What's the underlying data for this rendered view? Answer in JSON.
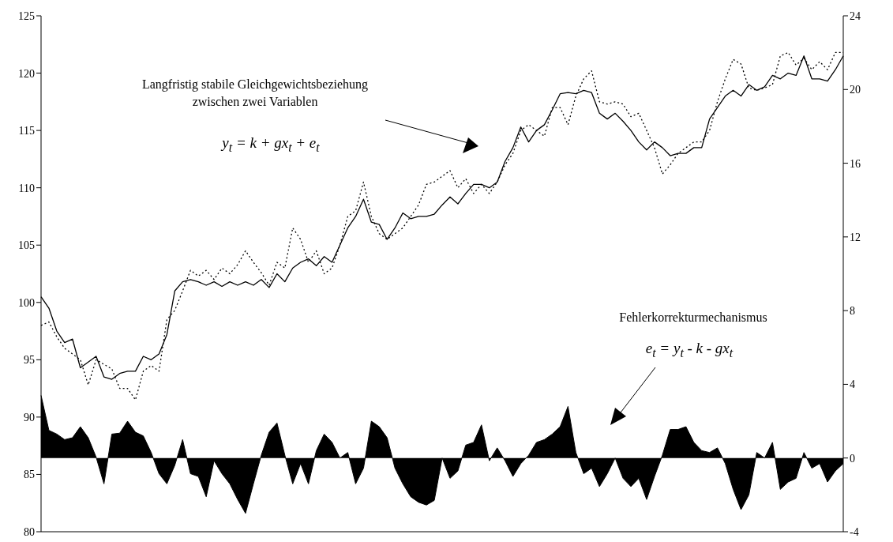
{
  "chart_data": {
    "type": "line",
    "categories": [
      null,
      null,
      null,
      null,
      null,
      null,
      null,
      null,
      null,
      null,
      null,
      null,
      null,
      null,
      null,
      null,
      null,
      null,
      null,
      null,
      null,
      null,
      null,
      null,
      null,
      null,
      null,
      null,
      null,
      null,
      null,
      null,
      null,
      null,
      null,
      null,
      null,
      null,
      null,
      null,
      null,
      null,
      null,
      null,
      null,
      null,
      null,
      null,
      null,
      null,
      null,
      null,
      null,
      null,
      null,
      null,
      null,
      null,
      null,
      null,
      null,
      null,
      null,
      null,
      null,
      null,
      null,
      null,
      null,
      null,
      null,
      null,
      null,
      null,
      null,
      null,
      null,
      null,
      null,
      null,
      null,
      null,
      null,
      null,
      null,
      null,
      null,
      null,
      null,
      null,
      null,
      null,
      null,
      null,
      null,
      null,
      null,
      null,
      null,
      null,
      null,
      null,
      null
    ],
    "series": [
      {
        "color": "#000000",
        "line_style": "solid",
        "values": [
          100.5,
          99.5,
          97.5,
          96.5,
          96.8,
          94.3,
          94.8,
          95.3,
          93.5,
          93.3,
          93.8,
          94,
          94,
          95.3,
          95,
          95.5,
          97.2,
          101,
          101.8,
          102,
          101.8,
          101.5,
          101.8,
          101.4,
          101.8,
          101.5,
          101.8,
          101.5,
          102,
          101.3,
          102.5,
          101.8,
          103,
          103.5,
          103.8,
          103.2,
          104,
          103.5,
          105,
          106.5,
          107.5,
          109,
          107,
          106.8,
          105.5,
          106.5,
          107.8,
          107.3,
          107.5,
          107.5,
          107.7,
          108.5,
          109.2,
          108.6,
          109.5,
          110.3,
          110.3,
          110,
          110.5,
          112.3,
          113.5,
          115.3,
          114,
          115,
          115.5,
          116.8,
          118.2,
          118.3,
          118.2,
          118.5,
          118.3,
          116.5,
          116,
          116.5,
          115.8,
          115,
          114,
          113.3,
          114,
          113.5,
          112.8,
          113,
          113,
          113.5,
          113.5,
          116,
          117,
          118,
          118.5,
          118,
          119,
          118.5,
          118.8,
          119.8,
          119.5,
          120,
          119.8,
          121.5,
          119.5,
          119.5,
          119.3,
          120.3,
          121.5
        ]
      },
      {
        "color": "#000000",
        "line_style": "dotted",
        "values": [
          98,
          98.3,
          97,
          96,
          95.5,
          95,
          92.8,
          95,
          94.6,
          94.2,
          92.5,
          92.5,
          91.5,
          94,
          94.5,
          94,
          98.5,
          99.3,
          101,
          102.8,
          102.3,
          102.8,
          102,
          103,
          102.5,
          103.3,
          104.5,
          103.5,
          102.6,
          101.5,
          103.5,
          103,
          106.5,
          105.5,
          103.5,
          104.5,
          102.5,
          103,
          105,
          107.5,
          108,
          110.5,
          107.5,
          106,
          105.5,
          106,
          106.5,
          107.5,
          108.5,
          110.3,
          110.5,
          111,
          111.5,
          110,
          110.8,
          109.5,
          110.3,
          109.5,
          110.5,
          112,
          113,
          115,
          115.5,
          115,
          114.5,
          117,
          117,
          115.5,
          118,
          119.5,
          120.2,
          117.5,
          117.3,
          117.5,
          117.3,
          116.2,
          116.5,
          115,
          113.5,
          111.2,
          112,
          113,
          113.5,
          114,
          114,
          115,
          117.5,
          119.5,
          121.2,
          120.8,
          118.7,
          118.5,
          118.7,
          119,
          121.5,
          121.8,
          120.7,
          121.3,
          120.3,
          121,
          120.3,
          121.8,
          121.8
        ]
      },
      {
        "type": "area",
        "axis": "y2",
        "color": "#000000",
        "values": [
          3.4,
          1.5,
          1.3,
          1.0,
          1.1,
          1.7,
          1.1,
          0.05,
          -1.4,
          1.3,
          1.35,
          2.0,
          1.4,
          1.2,
          0.3,
          -0.85,
          -1.4,
          -0.4,
          1.0,
          -0.85,
          -1.0,
          -2.1,
          -0.15,
          -0.85,
          -1.4,
          -2.25,
          -3.0,
          -1.4,
          0.15,
          1.4,
          1.9,
          0.15,
          -1.4,
          -0.3,
          -1.4,
          0.4,
          1.3,
          0.85,
          0,
          0.3,
          -1.4,
          -0.55,
          2.0,
          1.7,
          1.1,
          -0.55,
          -1.4,
          -2.1,
          -2.4,
          -2.55,
          -2.3,
          0,
          -1.1,
          -0.7,
          0.7,
          0.85,
          1.8,
          -0.15,
          0.55,
          -0.15,
          -1.0,
          -0.3,
          0.15,
          0.85,
          1.0,
          1.3,
          1.7,
          2.8,
          0.3,
          -0.85,
          -0.55,
          -1.55,
          -0.85,
          0,
          -1.1,
          -1.55,
          -1.1,
          -2.25,
          -1.0,
          0.15,
          1.55,
          1.55,
          1.7,
          0.85,
          0.4,
          0.3,
          0.55,
          -0.3,
          -1.7,
          -2.8,
          -2.0,
          0.3,
          0,
          0.85,
          -1.7,
          -1.3,
          -1.1,
          0.3,
          -0.55,
          -0.3,
          -1.3,
          -0.7,
          -0.3
        ]
      }
    ],
    "ylim": [
      80,
      125
    ],
    "yticks": [
      80,
      85,
      90,
      95,
      100,
      105,
      110,
      115,
      120,
      125
    ],
    "y2lim": [
      -4,
      24
    ],
    "y2ticks": [
      -4,
      0,
      4,
      8,
      12,
      16,
      20,
      24
    ],
    "marker": "none",
    "annotations": [
      "Langfristig stabile Gleichgewichtsbeziehung\nzwischen zwei Variablen",
      "y$_{t}$ = k + gx$_{t}$ + e$_{t}$",
      "Fehlerkorrekturmechanismus",
      "e$_{t}$ = y$_{t}$ - k - gx$_{t}$"
    ]
  }
}
